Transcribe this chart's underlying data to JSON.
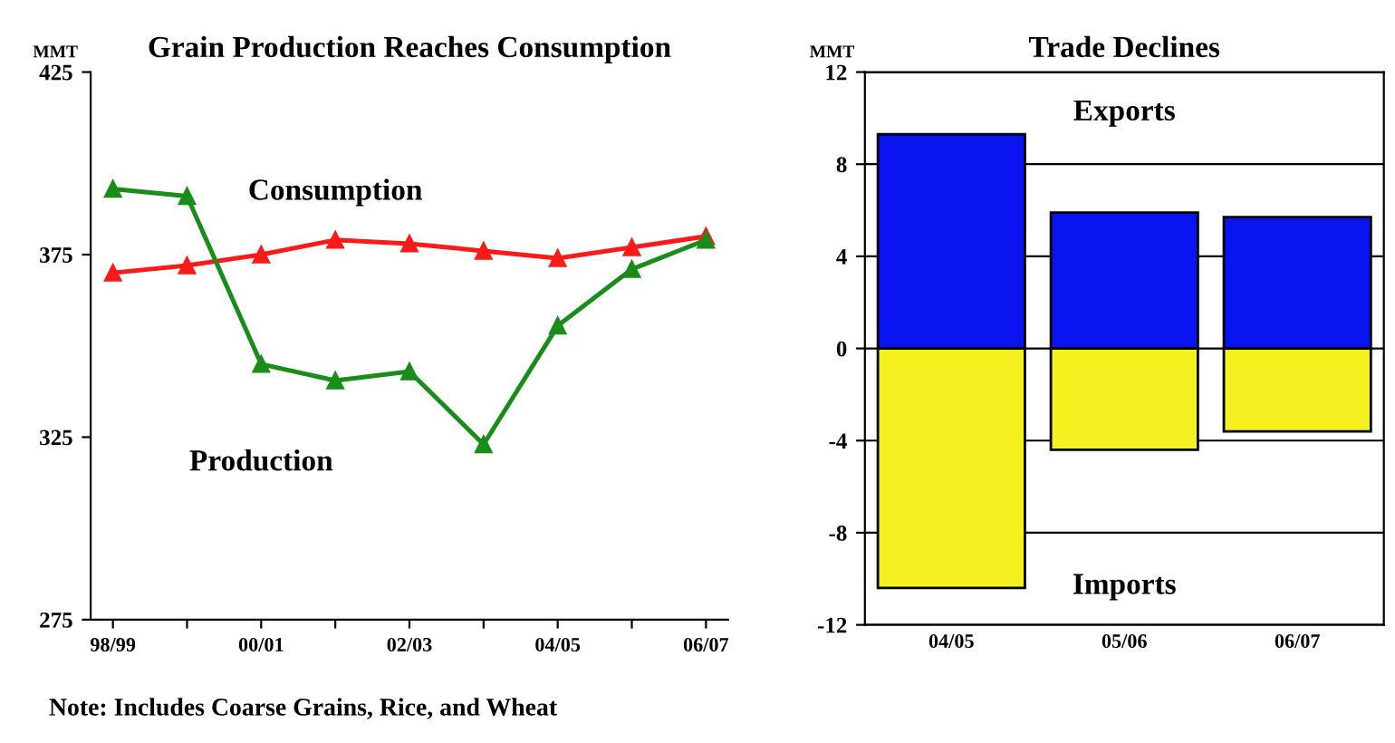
{
  "chart_data": [
    {
      "type": "line",
      "title": "Grain Production Reaches Consumption",
      "ylabel": "MMT",
      "categories": [
        "98/99",
        null,
        "00/01",
        null,
        "02/03",
        null,
        "04/05",
        null,
        "06/07"
      ],
      "series": [
        {
          "name": "Consumption",
          "color": "#ff1a1a",
          "values": [
            370,
            372,
            375,
            379,
            378,
            376,
            374,
            377,
            380
          ]
        },
        {
          "name": "Production",
          "color": "#1a8c1a",
          "values": [
            393,
            391,
            345,
            340.5,
            343,
            323,
            355.5,
            371,
            379
          ]
        }
      ],
      "ylim": [
        275,
        425
      ],
      "yticks": [
        275,
        325,
        375,
        425
      ],
      "marker": "triangle",
      "grid": false,
      "annotations": [
        "Note: Includes Coarse Grains, Rice, and Wheat"
      ]
    },
    {
      "type": "bar",
      "title": "Trade Declines",
      "ylabel": "MMT",
      "stacked": true,
      "categories": [
        "04/05",
        "05/06",
        "06/07"
      ],
      "series": [
        {
          "name": "Exports",
          "color": "#0a14f0",
          "values": [
            9.3,
            5.9,
            5.7
          ]
        },
        {
          "name": "Imports",
          "color": "#f5f020",
          "values": [
            -10.4,
            -4.4,
            -3.6
          ]
        }
      ],
      "ylim": [
        -12,
        12
      ],
      "yticks": [
        -12,
        -8,
        -4,
        0,
        4,
        8,
        12
      ],
      "grid": "y"
    }
  ]
}
